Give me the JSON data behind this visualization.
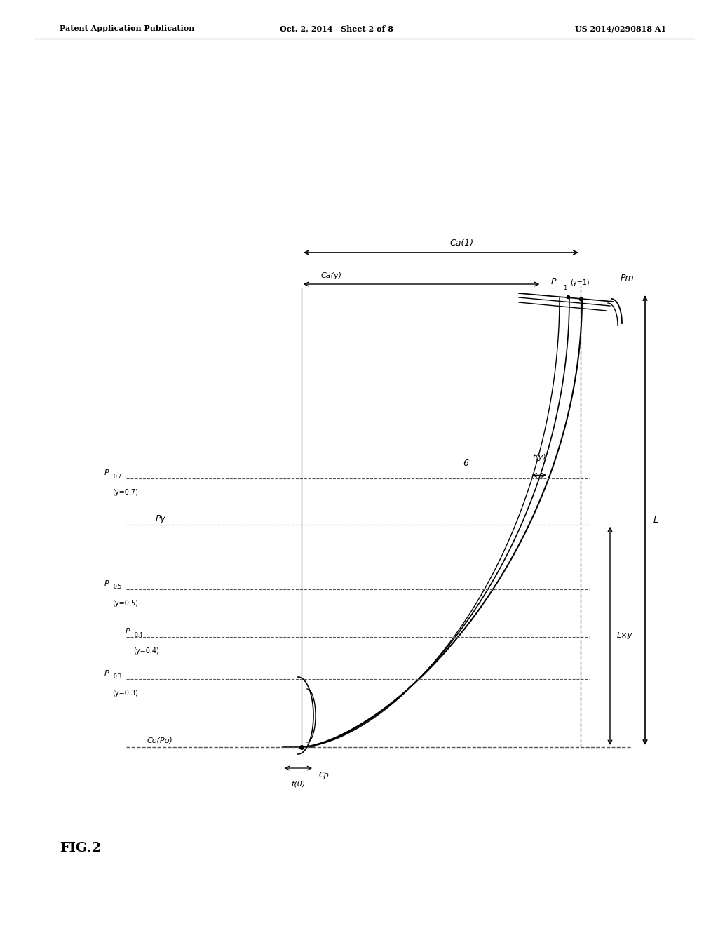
{
  "bg_color": "#ffffff",
  "line_color": "#000000",
  "dashed_color": "#555555",
  "header_left": "Patent Application Publication",
  "header_mid": "Oct. 2, 2014   Sheet 2 of 8",
  "header_right": "US 2014/0290818 A1",
  "fig_label": "FIG.2",
  "title_fontsize": 9,
  "label_fontsize": 9,
  "small_fontsize": 8
}
